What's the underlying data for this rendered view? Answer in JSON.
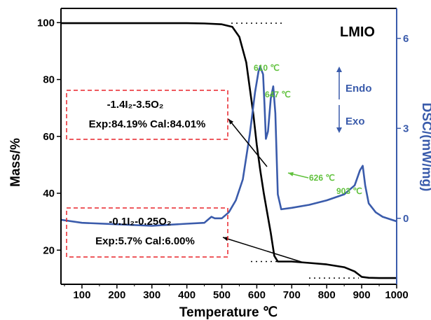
{
  "chart_data": {
    "type": "line",
    "title": "",
    "sample_label": "LMIO",
    "xlabel": "Temperature ℃",
    "ylabel_left": "Mass/%",
    "ylabel_right": "DSC/(mW/mg)",
    "xlim": [
      40,
      1000
    ],
    "ylim_left": [
      8,
      105
    ],
    "ylim_right": [
      -2.2,
      7.0
    ],
    "x_ticks": [
      100,
      200,
      300,
      400,
      500,
      600,
      700,
      800,
      900,
      1000
    ],
    "y_ticks_left": [
      20,
      40,
      60,
      80,
      100
    ],
    "y_ticks_right": [
      0,
      3,
      6
    ],
    "colors": {
      "mass": "#000000",
      "dsc": "#3a5bab",
      "peak": "#5fc13b",
      "box": "#e8232a",
      "axis_right": "#3a5bab"
    },
    "series": [
      {
        "axis": "left",
        "x": [
          40,
          100,
          200,
          300,
          400,
          450,
          500,
          530,
          550,
          570,
          590,
          600,
          610,
          620,
          630,
          640,
          650,
          660,
          700,
          750,
          800,
          850,
          880,
          900,
          920,
          950,
          1000
        ],
        "y": [
          99.8,
          99.8,
          99.8,
          99.8,
          99.8,
          99.7,
          99.4,
          98.5,
          95,
          86,
          68,
          57,
          48,
          40,
          33,
          26,
          18,
          16,
          16,
          15.5,
          15,
          14,
          12.5,
          10.6,
          10.3,
          10.2,
          10.2
        ]
      },
      {
        "axis": "right",
        "x": [
          40,
          100,
          200,
          300,
          400,
          450,
          460,
          470,
          480,
          500,
          520,
          540,
          560,
          580,
          595,
          605,
          610,
          618,
          622,
          626,
          632,
          640,
          647,
          653,
          660,
          670,
          700,
          750,
          800,
          850,
          880,
          895,
          903,
          910,
          920,
          940,
          960,
          1000
        ],
        "y": [
          -0.05,
          -0.15,
          -0.2,
          -0.25,
          -0.18,
          -0.15,
          -0.05,
          0.05,
          0.0,
          0.0,
          0.2,
          0.6,
          1.3,
          2.8,
          4.2,
          4.9,
          5.05,
          4.8,
          3.8,
          2.65,
          2.9,
          4.0,
          4.4,
          3.5,
          0.8,
          0.3,
          0.35,
          0.45,
          0.6,
          0.8,
          1.1,
          1.6,
          1.75,
          1.1,
          0.5,
          0.2,
          0.05,
          -0.1
        ]
      }
    ],
    "peaks": [
      {
        "x": 610,
        "label": "610 ℃"
      },
      {
        "x": 647,
        "label": "647 ℃"
      },
      {
        "x": 626,
        "label": "626 ℃"
      },
      {
        "x": 903,
        "label": "903 ℃"
      }
    ],
    "annotations": [
      {
        "formula": "-1.4I₂-3.5O₂",
        "values": "Exp:84.19%  Cal:84.01%"
      },
      {
        "formula": "-0.1I₂-0.25O₂",
        "values": "Exp:5.7%  Cal:6.00%"
      }
    ],
    "endo_label": "Endo",
    "exo_label": "Exo"
  }
}
